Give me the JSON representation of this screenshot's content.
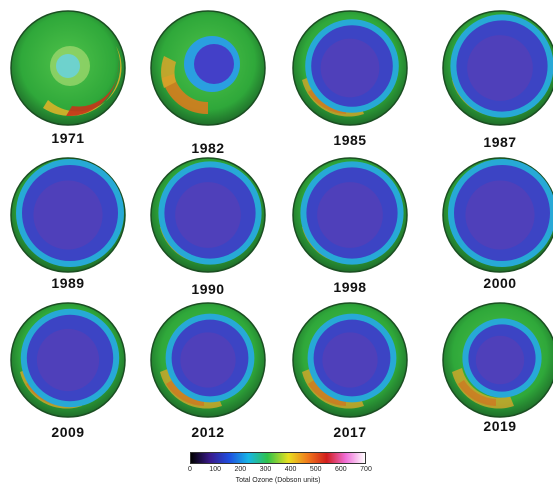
{
  "years": [
    "1971",
    "1982",
    "1985",
    "1987",
    "1989",
    "1990",
    "1998",
    "2000",
    "2009",
    "2012",
    "2017",
    "2019"
  ],
  "holes": [
    {
      "type": "warm"
    },
    {
      "type": "partial"
    },
    {
      "type": "hole",
      "r": 0.34
    },
    {
      "type": "hole",
      "r": 0.38
    },
    {
      "type": "hole",
      "r": 0.4
    },
    {
      "type": "hole",
      "r": 0.38
    },
    {
      "type": "hole",
      "r": 0.38
    },
    {
      "type": "hole",
      "r": 0.4
    },
    {
      "type": "hole",
      "r": 0.36
    },
    {
      "type": "hole",
      "r": 0.32
    },
    {
      "type": "hole",
      "r": 0.32
    },
    {
      "type": "hole",
      "r": 0.28
    }
  ],
  "legend": {
    "ticks": [
      "0",
      "100",
      "200",
      "300",
      "400",
      "500",
      "600",
      "700"
    ],
    "label": "Total Ozone (Dobson units)",
    "colors": [
      "#000000",
      "#3a1a8c",
      "#1f4fe0",
      "#17b6e6",
      "#2fc24a",
      "#e8e021",
      "#f07a1c",
      "#d11d1d",
      "#f06fd8",
      "#ffffff"
    ]
  }
}
